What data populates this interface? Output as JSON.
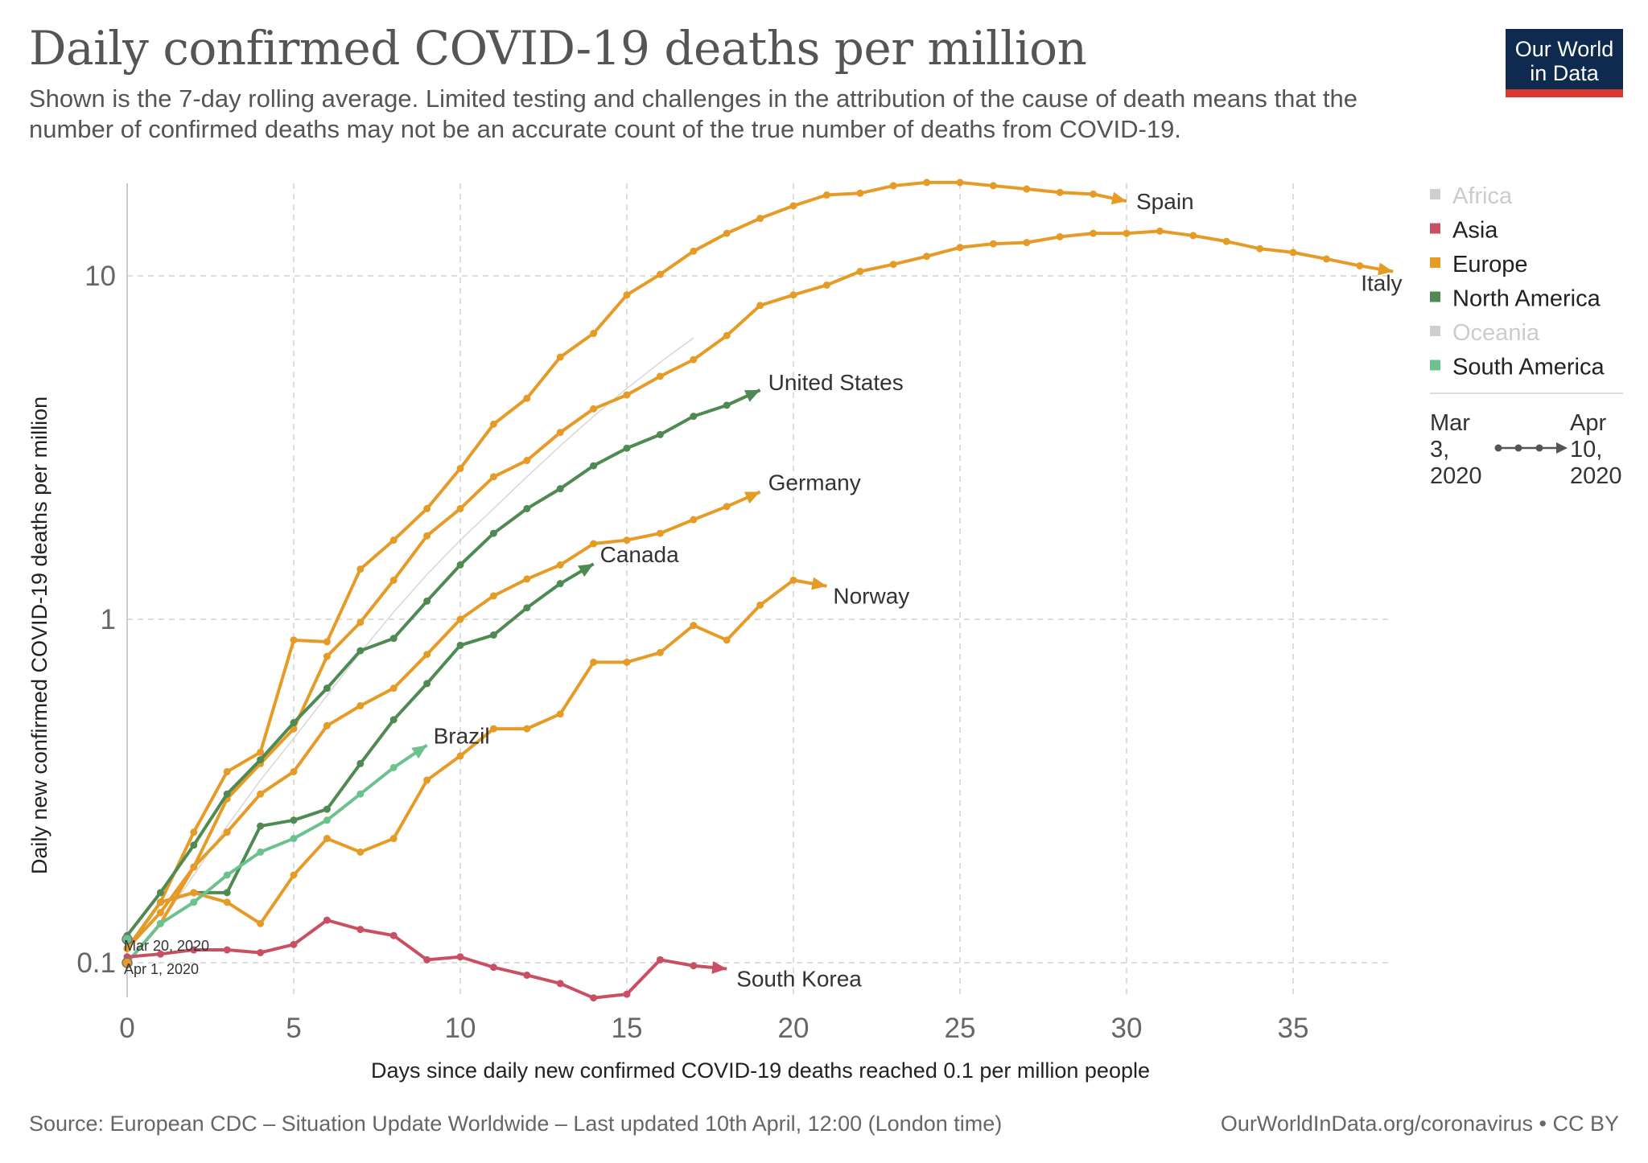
{
  "header": {
    "title": "Daily confirmed COVID-19 deaths per million",
    "subtitle": "Shown is the 7-day rolling average. Limited testing and challenges in the attribution of the cause of death means that the number of confirmed deaths may not be an accurate count of the true number of deaths from COVID-19.",
    "logo_line1": "Our World",
    "logo_line2": "in Data"
  },
  "colors": {
    "Asia": "#c95062",
    "Europe": "#e69b26",
    "North America": "#4e8a52",
    "South America": "#6cc28c",
    "background": "#cfcfcf",
    "legend_inactive": "#cfcfcf",
    "logo_bg": "#0e2a4f",
    "logo_accent": "#d8392e"
  },
  "chart_data": {
    "type": "line",
    "title": "Daily confirmed COVID-19 deaths per million",
    "xlabel": "Days since daily new confirmed COVID-19 deaths reached 0.1 per million people",
    "ylabel": "Daily new confirmed COVID-19 deaths per million",
    "xlim": [
      0,
      38
    ],
    "ylim": [
      0.075,
      18
    ],
    "yscale": "log",
    "xticks": [
      0,
      5,
      10,
      15,
      20,
      25,
      30,
      35
    ],
    "yticks": [
      {
        "value": 0.1,
        "label": "0.1"
      },
      {
        "value": 1,
        "label": "1"
      },
      {
        "value": 10,
        "label": "10"
      }
    ],
    "grid": true,
    "legend_position": "right",
    "legend": [
      {
        "name": "Africa",
        "active": false
      },
      {
        "name": "Asia",
        "active": true
      },
      {
        "name": "Europe",
        "active": true
      },
      {
        "name": "North America",
        "active": true
      },
      {
        "name": "Oceania",
        "active": false
      },
      {
        "name": "South America",
        "active": true
      }
    ],
    "timeline": {
      "start": "Mar\n3,\n2020",
      "end": "Apr\n10,\n2020"
    },
    "start_annotations": [
      {
        "text": "Mar 20, 2020",
        "y": 0.117
      },
      {
        "text": "Apr 1, 2020",
        "y": 0.1
      }
    ],
    "series": [
      {
        "name": "Spain",
        "continent": "Europe",
        "y": [
          0.11,
          0.15,
          0.24,
          0.36,
          0.41,
          0.87,
          0.86,
          1.4,
          1.7,
          2.1,
          2.75,
          3.7,
          4.4,
          5.8,
          6.8,
          8.8,
          10.1,
          11.8,
          13.3,
          14.7,
          16,
          17.2,
          17.4,
          18.3,
          18.7,
          18.7,
          18.3,
          17.9,
          17.5,
          17.3,
          16.5
        ]
      },
      {
        "name": "Italy",
        "continent": "Europe",
        "y": [
          0.1,
          0.13,
          0.19,
          0.3,
          0.38,
          0.48,
          0.78,
          0.98,
          1.3,
          1.75,
          2.1,
          2.6,
          2.9,
          3.5,
          4.1,
          4.5,
          5.1,
          5.7,
          6.7,
          8.2,
          8.8,
          9.4,
          10.3,
          10.8,
          11.4,
          12.1,
          12.4,
          12.5,
          13.0,
          13.3,
          13.3,
          13.5,
          13.1,
          12.6,
          12.0,
          11.7,
          11.2,
          10.7,
          10.3
        ]
      },
      {
        "name": "United States",
        "continent": "North America",
        "y": [
          0.12,
          0.16,
          0.22,
          0.31,
          0.39,
          0.5,
          0.63,
          0.81,
          0.88,
          1.13,
          1.44,
          1.78,
          2.1,
          2.4,
          2.8,
          3.15,
          3.45,
          3.9,
          4.2,
          4.65
        ]
      },
      {
        "name": "Germany",
        "continent": "Europe",
        "y": [
          0.11,
          0.14,
          0.19,
          0.24,
          0.31,
          0.36,
          0.49,
          0.56,
          0.63,
          0.79,
          1.0,
          1.17,
          1.31,
          1.44,
          1.66,
          1.7,
          1.78,
          1.95,
          2.13,
          2.35
        ]
      },
      {
        "name": "Canada",
        "continent": "North America",
        "y": [
          0.11,
          0.15,
          0.16,
          0.16,
          0.25,
          0.26,
          0.28,
          0.38,
          0.51,
          0.65,
          0.84,
          0.9,
          1.08,
          1.27,
          1.45
        ]
      },
      {
        "name": "Norway",
        "continent": "Europe",
        "y": [
          0.11,
          0.15,
          0.16,
          0.15,
          0.13,
          0.18,
          0.23,
          0.21,
          0.23,
          0.34,
          0.4,
          0.48,
          0.48,
          0.53,
          0.75,
          0.75,
          0.8,
          0.96,
          0.87,
          1.1,
          1.3,
          1.25
        ]
      },
      {
        "name": "Brazil",
        "continent": "South America",
        "y": [
          0.1,
          0.13,
          0.15,
          0.18,
          0.21,
          0.23,
          0.26,
          0.31,
          0.37,
          0.43
        ]
      },
      {
        "name": "South Korea",
        "continent": "Asia",
        "y": [
          0.104,
          0.106,
          0.109,
          0.109,
          0.107,
          0.113,
          0.133,
          0.125,
          0.12,
          0.102,
          0.104,
          0.097,
          0.092,
          0.087,
          0.079,
          0.081,
          0.102,
          0.098,
          0.096
        ]
      }
    ],
    "background_series": [
      [
        0.1,
        0.13,
        0.18,
        0.25,
        0.34,
        0.45,
        0.6,
        0.8,
        1.05,
        1.35,
        1.7,
        2.1,
        2.6,
        3.2,
        3.9,
        4.7,
        5.6,
        6.6
      ]
    ]
  },
  "footer": {
    "source": "Source: European CDC – Situation Update Worldwide – Last updated 10th April, 12:00 (London time)",
    "url": "OurWorldInData.org/coronavirus • CC BY"
  }
}
